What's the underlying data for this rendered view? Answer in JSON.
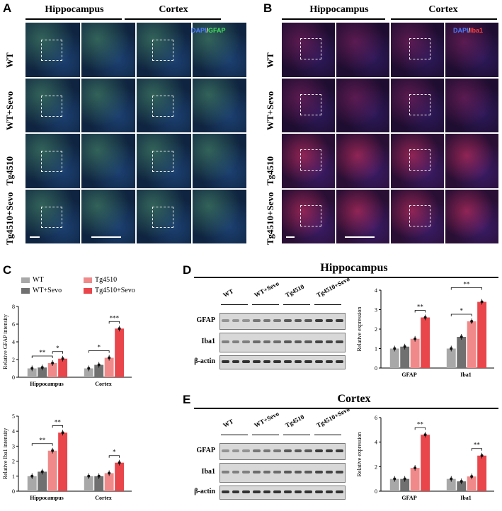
{
  "panels": {
    "A": "A",
    "B": "B",
    "C": "C",
    "D": "D",
    "E": "E"
  },
  "micro": {
    "hippocampus": "Hippocampus",
    "cortex": "Cortex",
    "rows": [
      "WT",
      "WT+Sevo",
      "Tg4510",
      "Tg4510+Sevo"
    ],
    "stain_A": {
      "dapi": "DAPI",
      "sep": "/",
      "marker": "GFAP"
    },
    "stain_B": {
      "dapi": "DAPI",
      "sep": "/",
      "marker": "Iba1"
    }
  },
  "colors": {
    "wt": "#a8a8a8",
    "wt_sevo": "#707070",
    "tg": "#f08a8a",
    "tg_sevo": "#e8464b"
  },
  "legend": [
    "WT",
    "WT+Sevo",
    "Tg4510",
    "Tg4510+Sevo"
  ],
  "blots": {
    "D_title": "Hippocampus",
    "E_title": "Cortex",
    "lanes": [
      "WT",
      "WT+Sevo",
      "Tg4510",
      "Tg4510+Sevo"
    ],
    "rows": [
      "GFAP",
      "Iba1",
      "β-actin"
    ]
  },
  "chart_data": [
    {
      "id": "C_gfap",
      "type": "bar",
      "ylabel": "Relative GFAP intensity",
      "categories": [
        "Hippocampus",
        "Cortex"
      ],
      "ylim": [
        0,
        8
      ],
      "yticks": [
        "0",
        "2",
        "4",
        "6",
        "8"
      ],
      "series": [
        {
          "name": "WT",
          "values": [
            1.0,
            1.0
          ]
        },
        {
          "name": "WT+Sevo",
          "values": [
            1.1,
            1.4
          ]
        },
        {
          "name": "Tg4510",
          "values": [
            1.6,
            2.2
          ]
        },
        {
          "name": "Tg4510+Sevo",
          "values": [
            2.1,
            5.5
          ]
        }
      ],
      "annotations": [
        {
          "group": 0,
          "from": 0,
          "to": 2,
          "text": "**"
        },
        {
          "group": 0,
          "from": 2,
          "to": 3,
          "text": "*"
        },
        {
          "group": 1,
          "from": 0,
          "to": 2,
          "text": "*"
        },
        {
          "group": 1,
          "from": 2,
          "to": 3,
          "text": "***"
        }
      ]
    },
    {
      "id": "C_iba1",
      "type": "bar",
      "ylabel": "Relative Iba1 intensity",
      "categories": [
        "Hippocampus",
        "Cortex"
      ],
      "ylim": [
        0,
        5
      ],
      "yticks": [
        "0",
        "1",
        "2",
        "3",
        "4",
        "5"
      ],
      "series": [
        {
          "name": "WT",
          "values": [
            1.0,
            1.0
          ]
        },
        {
          "name": "WT+Sevo",
          "values": [
            1.3,
            1.0
          ]
        },
        {
          "name": "Tg4510",
          "values": [
            2.7,
            1.2
          ]
        },
        {
          "name": "Tg4510+Sevo",
          "values": [
            3.9,
            1.9
          ]
        }
      ],
      "annotations": [
        {
          "group": 0,
          "from": 0,
          "to": 2,
          "text": "**"
        },
        {
          "group": 0,
          "from": 2,
          "to": 3,
          "text": "**"
        },
        {
          "group": 1,
          "from": 2,
          "to": 3,
          "text": "*"
        }
      ]
    },
    {
      "id": "D_expr",
      "type": "bar",
      "ylabel": "Relative expression",
      "categories": [
        "GFAP",
        "Iba1"
      ],
      "ylim": [
        0,
        4
      ],
      "yticks": [
        "0",
        "1",
        "2",
        "3",
        "4"
      ],
      "series": [
        {
          "name": "WT",
          "values": [
            1.0,
            1.0
          ]
        },
        {
          "name": "WT+Sevo",
          "values": [
            1.1,
            1.6
          ]
        },
        {
          "name": "Tg4510",
          "values": [
            1.5,
            2.4
          ]
        },
        {
          "name": "Tg4510+Sevo",
          "values": [
            2.6,
            3.4
          ]
        }
      ],
      "annotations": [
        {
          "group": 0,
          "from": 2,
          "to": 3,
          "text": "**"
        },
        {
          "group": 1,
          "from": 0,
          "to": 2,
          "text": "*"
        },
        {
          "group": 1,
          "from": 0,
          "to": 3,
          "text": "**"
        }
      ]
    },
    {
      "id": "E_expr",
      "type": "bar",
      "ylabel": "Relative expression",
      "categories": [
        "GFAP",
        "Iba1"
      ],
      "ylim": [
        0,
        6
      ],
      "yticks": [
        "0",
        "2",
        "4",
        "6"
      ],
      "series": [
        {
          "name": "WT",
          "values": [
            1.0,
            1.0
          ]
        },
        {
          "name": "WT+Sevo",
          "values": [
            1.0,
            0.8
          ]
        },
        {
          "name": "Tg4510",
          "values": [
            1.9,
            1.2
          ]
        },
        {
          "name": "Tg4510+Sevo",
          "values": [
            4.6,
            2.9
          ]
        }
      ],
      "annotations": [
        {
          "group": 0,
          "from": 2,
          "to": 3,
          "text": "**"
        },
        {
          "group": 1,
          "from": 2,
          "to": 3,
          "text": "**"
        }
      ]
    }
  ]
}
